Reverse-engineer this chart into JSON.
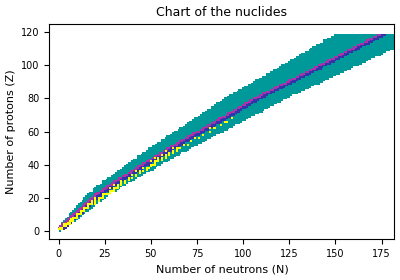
{
  "title": "Chart of the nuclides",
  "xlabel": "Number of neutrons (N)",
  "ylabel": "Number of protons (Z)",
  "xlim": [
    -5,
    182
  ],
  "ylim": [
    -5,
    125
  ],
  "xticks": [
    0,
    25,
    50,
    75,
    100,
    125,
    150,
    175
  ],
  "yticks": [
    0,
    20,
    40,
    60,
    80,
    100,
    120
  ],
  "teal_color": "#009999",
  "stable_color": "#FFFF00",
  "beta_minus_color": "#3333AA",
  "beta_plus_color": "#AA33AA",
  "alpha_color": "#FF8800",
  "title_fontsize": 9,
  "label_fontsize": 8,
  "tick_fontsize": 7,
  "marker_size_teal": 2.0,
  "marker_size_colored": 3.5
}
